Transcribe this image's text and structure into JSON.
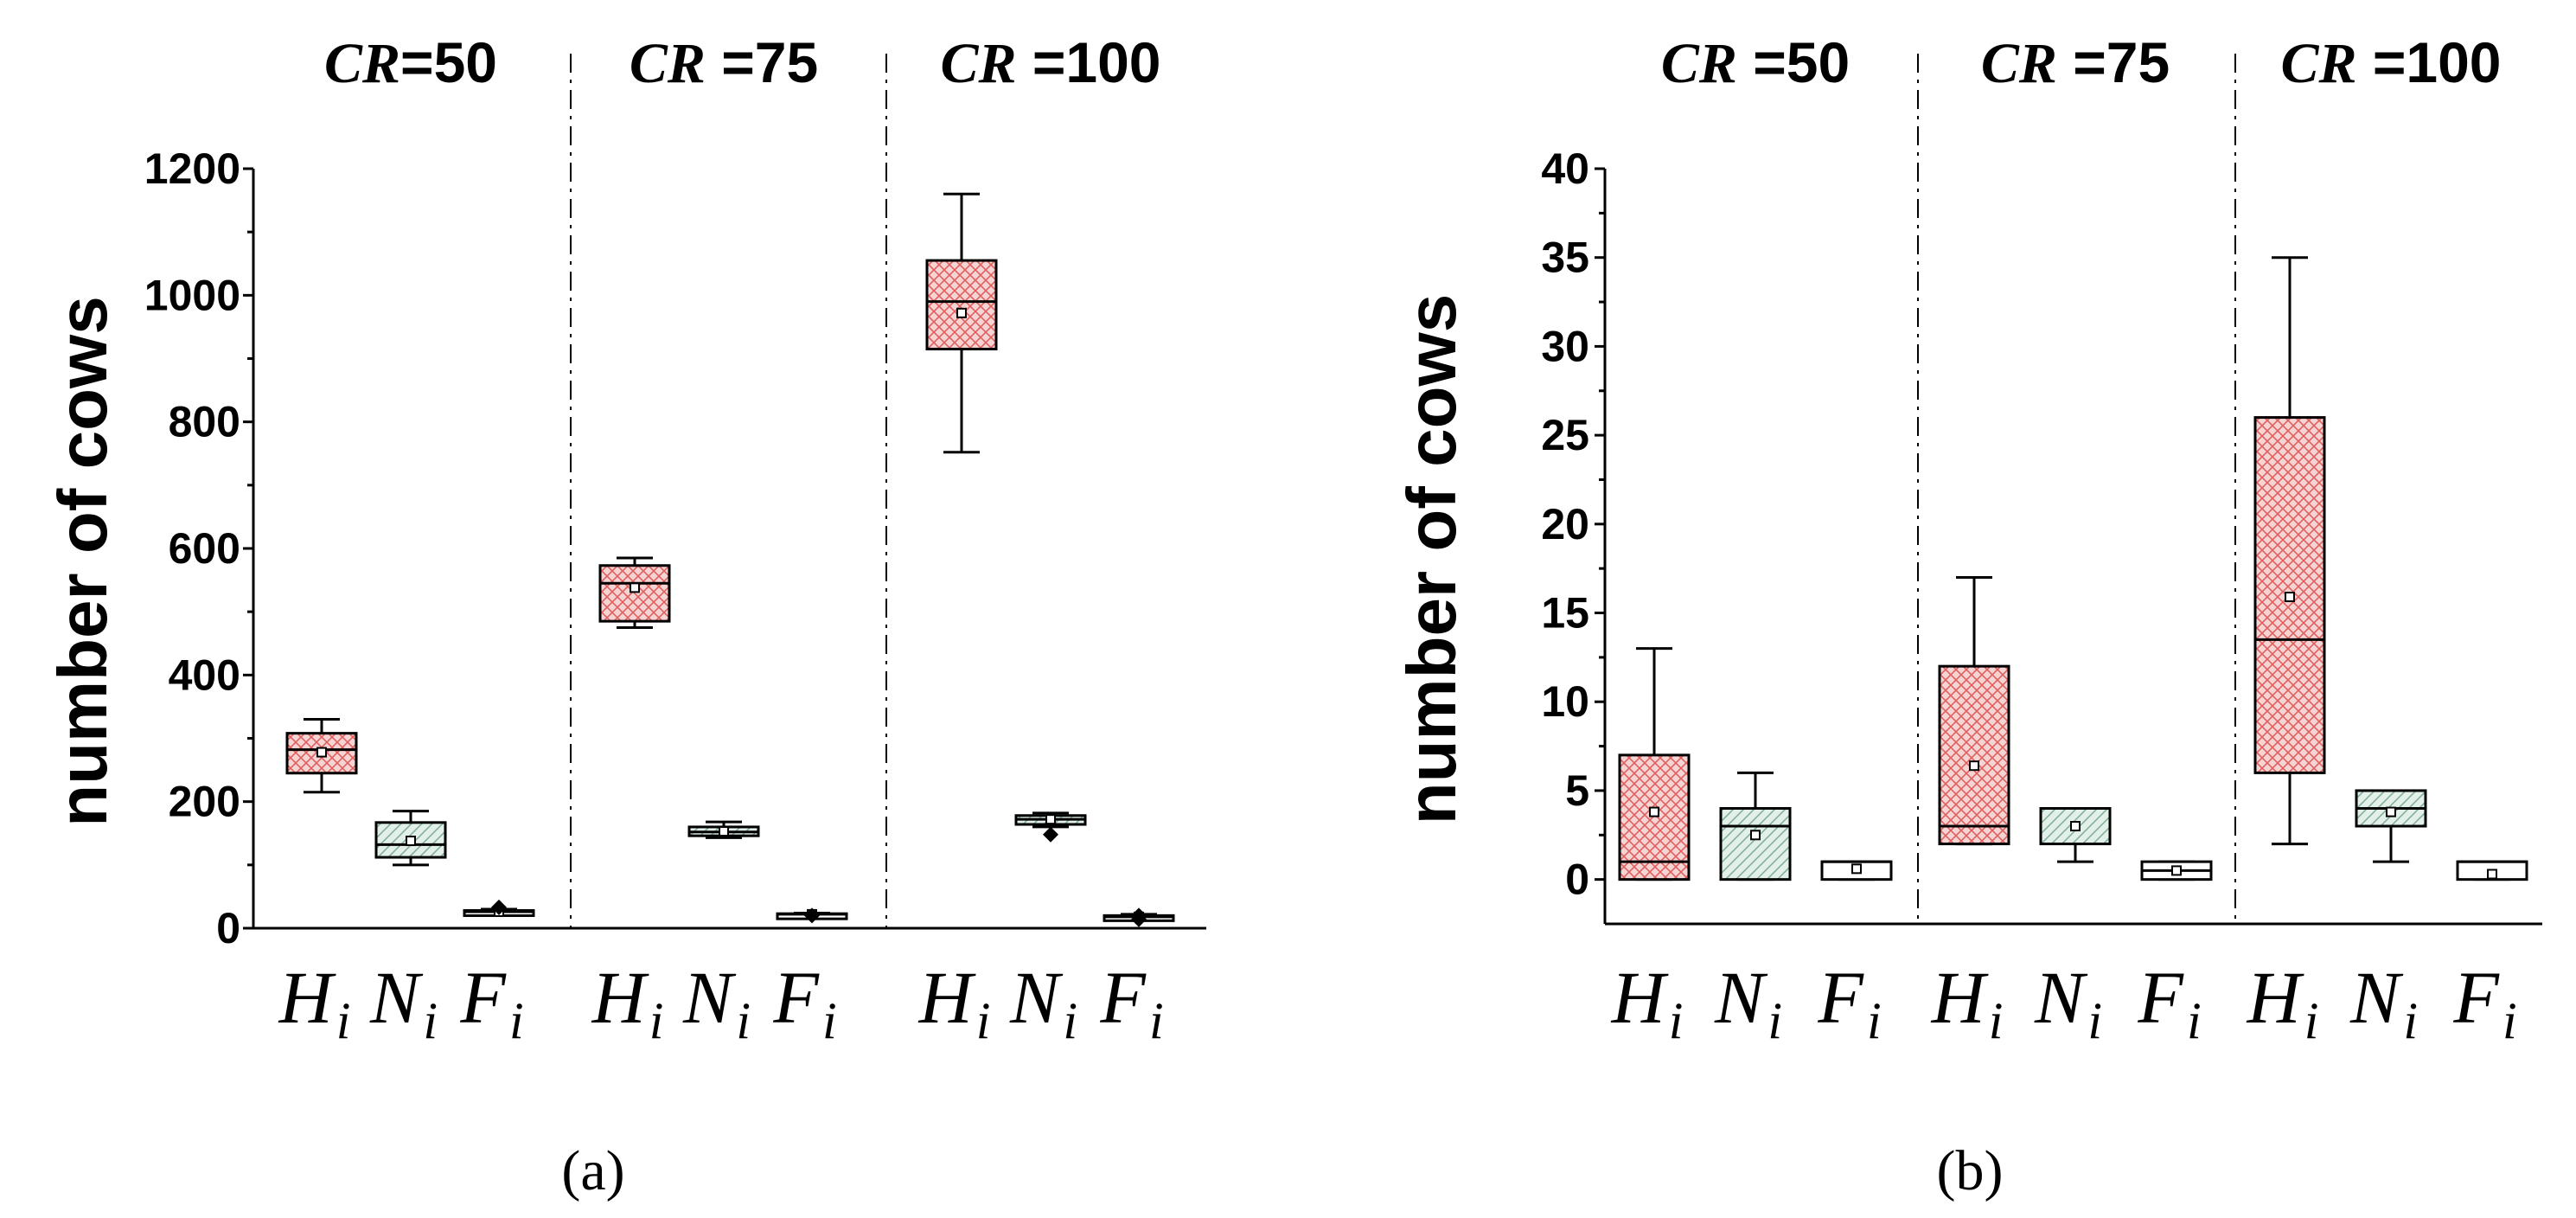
{
  "chart_data": [
    {
      "panel_label": "(a)",
      "type": "box",
      "ylabel": "number of cows",
      "ylim": [
        0,
        1200
      ],
      "y_ticks": [
        0,
        200,
        400,
        600,
        800,
        1000,
        1200
      ],
      "groups": [
        {
          "prefix": "CR",
          "suffix": "=50",
          "series": [
            {
              "name": "H",
              "sub": "i",
              "fill": "#f2c9c9",
              "hatch": "#e26a6a",
              "pattern": "cross",
              "min": 215,
              "q1": 245,
              "median": 282,
              "q3": 308,
              "max": 330,
              "mean": 278
            },
            {
              "name": "N",
              "sub": "i",
              "fill": "#d9ece3",
              "hatch": "#7fae98",
              "pattern": "diag",
              "min": 100,
              "q1": 112,
              "median": 132,
              "q3": 167,
              "max": 185,
              "mean": 138
            },
            {
              "name": "F",
              "sub": "i",
              "fill": "#ffffff",
              "hatch": "",
              "pattern": "none",
              "min": 22,
              "q1": 24,
              "median": 26,
              "q3": 28,
              "max": 30,
              "mean": 26,
              "outliers": [
                33
              ]
            }
          ]
        },
        {
          "prefix": "CR",
          "suffix": " =75",
          "series": [
            {
              "name": "H",
              "sub": "i",
              "fill": "#f2c9c9",
              "hatch": "#e26a6a",
              "pattern": "cross",
              "min": 475,
              "q1": 485,
              "median": 545,
              "q3": 573,
              "max": 585,
              "mean": 538
            },
            {
              "name": "N",
              "sub": "i",
              "fill": "#d9ece3",
              "hatch": "#7fae98",
              "pattern": "diag",
              "min": 143,
              "q1": 146,
              "median": 152,
              "q3": 160,
              "max": 168,
              "mean": 153
            },
            {
              "name": "F",
              "sub": "i",
              "fill": "#ffffff",
              "hatch": "",
              "pattern": "none",
              "min": 20,
              "q1": 21,
              "median": 22,
              "q3": 23,
              "max": 24,
              "mean": 22,
              "outliers": [
                20
              ]
            }
          ]
        },
        {
          "prefix": "CR",
          "suffix": " =100",
          "series": [
            {
              "name": "H",
              "sub": "i",
              "fill": "#f2c9c9",
              "hatch": "#e26a6a",
              "pattern": "cross",
              "min": 752,
              "q1": 915,
              "median": 990,
              "q3": 1055,
              "max": 1160,
              "mean": 972
            },
            {
              "name": "N",
              "sub": "i",
              "fill": "#d9ece3",
              "hatch": "#7fae98",
              "pattern": "diag",
              "min": 160,
              "q1": 164,
              "median": 172,
              "q3": 178,
              "max": 182,
              "mean": 172,
              "outliers": [
                148
              ]
            },
            {
              "name": "F",
              "sub": "i",
              "fill": "#ffffff",
              "hatch": "",
              "pattern": "none",
              "min": 14,
              "q1": 16,
              "median": 18,
              "q3": 20,
              "max": 22,
              "mean": 18,
              "outliers": [
                20,
                14
              ]
            }
          ]
        }
      ]
    },
    {
      "panel_label": "(b)",
      "type": "box",
      "ylabel": "number of cows",
      "ylim": [
        -2.5,
        40
      ],
      "y_ticks": [
        0,
        5,
        10,
        15,
        20,
        25,
        30,
        35,
        40
      ],
      "groups": [
        {
          "prefix": "CR",
          "suffix": " =50",
          "series": [
            {
              "name": "H",
              "sub": "i",
              "fill": "#f2c9c9",
              "hatch": "#e26a6a",
              "pattern": "cross",
              "min": 0,
              "q1": 0,
              "median": 1,
              "q3": 7,
              "max": 13,
              "mean": 3.8
            },
            {
              "name": "N",
              "sub": "i",
              "fill": "#d9ece3",
              "hatch": "#7fae98",
              "pattern": "diag",
              "min": 0,
              "q1": 0,
              "median": 3,
              "q3": 4,
              "max": 6,
              "mean": 2.5
            },
            {
              "name": "F",
              "sub": "i",
              "fill": "#ffffff",
              "hatch": "",
              "pattern": "none",
              "min": 0,
              "q1": 0,
              "median": 1,
              "q3": 1,
              "max": 1,
              "mean": 0.6
            }
          ]
        },
        {
          "prefix": "CR",
          "suffix": " =75",
          "series": [
            {
              "name": "H",
              "sub": "i",
              "fill": "#f2c9c9",
              "hatch": "#e26a6a",
              "pattern": "cross",
              "min": 2,
              "q1": 2,
              "median": 3,
              "q3": 12,
              "max": 17,
              "mean": 6.4
            },
            {
              "name": "N",
              "sub": "i",
              "fill": "#d9ece3",
              "hatch": "#7fae98",
              "pattern": "diag",
              "min": 1,
              "q1": 2,
              "median": 4,
              "q3": 4,
              "max": 4,
              "mean": 3
            },
            {
              "name": "F",
              "sub": "i",
              "fill": "#ffffff",
              "hatch": "",
              "pattern": "none",
              "min": 0,
              "q1": 0,
              "median": 0.5,
              "q3": 1,
              "max": 1,
              "mean": 0.5
            }
          ]
        },
        {
          "prefix": "CR",
          "suffix": " =100",
          "series": [
            {
              "name": "H",
              "sub": "i",
              "fill": "#f2c9c9",
              "hatch": "#e26a6a",
              "pattern": "cross",
              "min": 2,
              "q1": 6,
              "median": 13.5,
              "q3": 26,
              "max": 35,
              "mean": 15.9
            },
            {
              "name": "N",
              "sub": "i",
              "fill": "#d9ece3",
              "hatch": "#7fae98",
              "pattern": "diag",
              "min": 1,
              "q1": 3,
              "median": 4,
              "q3": 5,
              "max": 5,
              "mean": 3.8
            },
            {
              "name": "F",
              "sub": "i",
              "fill": "#ffffff",
              "hatch": "",
              "pattern": "none",
              "min": 0,
              "q1": 0,
              "median": 1,
              "q3": 1,
              "max": 1,
              "mean": 0.3
            }
          ]
        }
      ]
    }
  ]
}
